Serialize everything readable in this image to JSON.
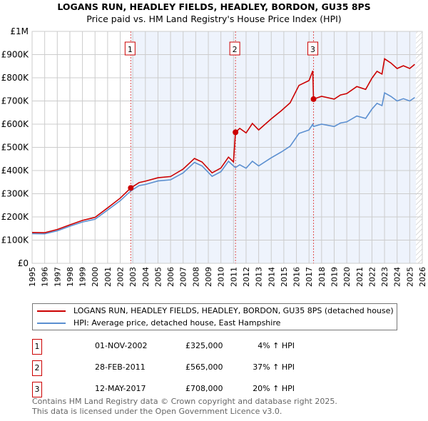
{
  "chart_data": {
    "type": "line",
    "title": "LOGANS RUN, HEADLEY FIELDS, HEADLEY, BORDON, GU35 8PS",
    "subtitle": "Price paid vs. HM Land Registry's House Price Index (HPI)",
    "xlim": [
      1995,
      2026
    ],
    "ylim": [
      0,
      1000000
    ],
    "y_ticks": [
      {
        "v": 0,
        "label": "£0"
      },
      {
        "v": 100000,
        "label": "£100K"
      },
      {
        "v": 200000,
        "label": "£200K"
      },
      {
        "v": 300000,
        "label": "£300K"
      },
      {
        "v": 400000,
        "label": "£400K"
      },
      {
        "v": 500000,
        "label": "£500K"
      },
      {
        "v": 600000,
        "label": "£600K"
      },
      {
        "v": 700000,
        "label": "£700K"
      },
      {
        "v": 800000,
        "label": "£800K"
      },
      {
        "v": 900000,
        "label": "£900K"
      },
      {
        "v": 1000000,
        "label": "£1M"
      }
    ],
    "x_ticks": [
      "1995",
      "1996",
      "1997",
      "1998",
      "1999",
      "2000",
      "2001",
      "2002",
      "2003",
      "2004",
      "2005",
      "2006",
      "2007",
      "2008",
      "2009",
      "2010",
      "2011",
      "2012",
      "2013",
      "2014",
      "2015",
      "2016",
      "2017",
      "2018",
      "2019",
      "2020",
      "2021",
      "2022",
      "2023",
      "2024",
      "2025",
      "2026"
    ],
    "x": [
      1995,
      1996,
      1997,
      1998,
      1999,
      2000,
      2001,
      2002,
      2002.84,
      2003.5,
      2004,
      2005,
      2006,
      2007,
      2007.9,
      2008.5,
      2009.3,
      2010,
      2010.6,
      2011.0,
      2011.16,
      2011.5,
      2012,
      2012.5,
      2013,
      2014,
      2014.8,
      2015.5,
      2016.2,
      2017,
      2017.3,
      2017.36,
      2018,
      2019,
      2019.5,
      2020,
      2020.8,
      2021.5,
      2022,
      2022.4,
      2022.8,
      2023,
      2023.5,
      2024,
      2024.5,
      2025,
      2025.4
    ],
    "series": [
      {
        "name": "LOGANS RUN, HEADLEY FIELDS, HEADLEY, BORDON, GU35 8PS (detached house)",
        "color": "#cc0000",
        "values": [
          133,
          132,
          146,
          166,
          185,
          198,
          239,
          281,
          325,
          348,
          354,
          369,
          374,
          406,
          452,
          437,
          390,
          411,
          458,
          437,
          565,
          582,
          562,
          603,
          575,
          623,
          658,
          692,
          767,
          788,
          830,
          708,
          720,
          708,
          726,
          732,
          762,
          750,
          798,
          828,
          816,
          882,
          864,
          840,
          852,
          840,
          858
        ]
      },
      {
        "name": "HPI: Average price, detached house, East Hampshire",
        "color": "#5b8fd0",
        "values": [
          128,
          127,
          140,
          160,
          178,
          190,
          230,
          270,
          312,
          335,
          340,
          355,
          360,
          390,
          435,
          420,
          375,
          395,
          440,
          420,
          413,
          425,
          410,
          440,
          420,
          455,
          480,
          505,
          560,
          575,
          600,
          590,
          600,
          590,
          605,
          610,
          635,
          625,
          665,
          690,
          680,
          735,
          720,
          700,
          710,
          700,
          715
        ]
      }
    ],
    "value_unit": "thousand GBP",
    "sales": [
      {
        "num": "1",
        "x": 2002.84,
        "value": 325,
        "date": "01-NOV-2002",
        "price": "£325,000",
        "hpi": "4% ↑ HPI"
      },
      {
        "num": "2",
        "x": 2011.16,
        "value": 565,
        "date": "28-FEB-2011",
        "price": "£565,000",
        "hpi": "37% ↑ HPI"
      },
      {
        "num": "3",
        "x": 2017.36,
        "value": 708,
        "date": "12-MAY-2017",
        "price": "£708,000",
        "hpi": "20% ↑ HPI"
      }
    ],
    "forecast_start": 2025.5,
    "legend": "below"
  },
  "footer": [
    "Contains HM Land Registry data © Crown copyright and database right 2025.",
    "This data is licensed under the Open Government Licence v3.0."
  ]
}
